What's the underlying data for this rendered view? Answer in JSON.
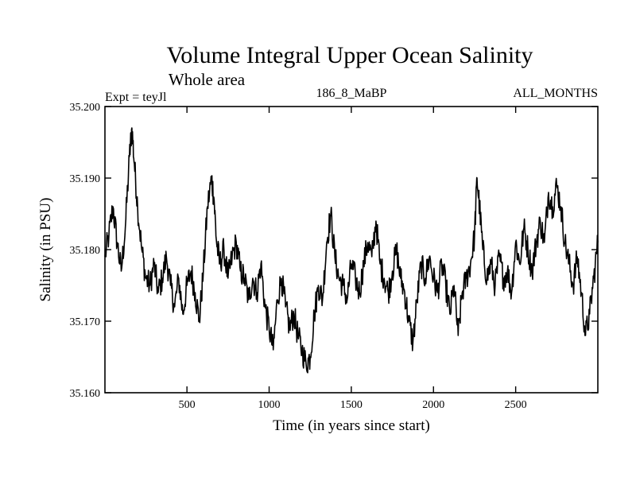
{
  "chart_data": {
    "type": "line",
    "title": "Volume Integral Upper Ocean Salinity",
    "subtitle": "Whole area",
    "experiment": "Expt = teyJl",
    "run_id": "186_8_MaBP",
    "period": "ALL_MONTHS",
    "xlabel": "Time (in years since start)",
    "ylabel": "Salinity (in PSU)",
    "xlim": [
      1,
      3000
    ],
    "ylim": [
      35.16,
      35.2
    ],
    "x_ticks": [
      500,
      1000,
      1500,
      2000,
      2500
    ],
    "x_tick_labels": [
      "500",
      "1000",
      "1500",
      "2000",
      "2500"
    ],
    "y_ticks": [
      35.16,
      35.17,
      35.18,
      35.19,
      35.2
    ],
    "y_tick_labels": [
      "35.160",
      "35.170",
      "35.180",
      "35.190",
      "35.200"
    ],
    "series": [
      {
        "name": "Salinity",
        "x": [
          1,
          25,
          50,
          75,
          100,
          125,
          150,
          165,
          180,
          200,
          225,
          250,
          275,
          300,
          325,
          350,
          375,
          400,
          425,
          450,
          475,
          500,
          525,
          550,
          575,
          600,
          625,
          650,
          665,
          680,
          700,
          725,
          750,
          775,
          800,
          825,
          850,
          875,
          900,
          925,
          950,
          975,
          1000,
          1025,
          1050,
          1075,
          1100,
          1125,
          1150,
          1175,
          1200,
          1225,
          1250,
          1275,
          1300,
          1325,
          1350,
          1375,
          1400,
          1425,
          1450,
          1475,
          1500,
          1525,
          1550,
          1575,
          1600,
          1625,
          1650,
          1675,
          1700,
          1725,
          1750,
          1775,
          1800,
          1825,
          1850,
          1875,
          1900,
          1925,
          1950,
          1975,
          2000,
          2025,
          2050,
          2075,
          2100,
          2125,
          2150,
          2175,
          2200,
          2225,
          2250,
          2265,
          2280,
          2300,
          2325,
          2350,
          2375,
          2400,
          2425,
          2450,
          2475,
          2500,
          2525,
          2550,
          2575,
          2600,
          2625,
          2650,
          2675,
          2700,
          2725,
          2750,
          2775,
          2800,
          2825,
          2850,
          2875,
          2900,
          2925,
          2950,
          2975,
          3000
        ],
        "values": [
          35.179,
          35.182,
          35.186,
          35.181,
          35.177,
          35.183,
          35.193,
          35.197,
          35.192,
          35.186,
          35.18,
          35.176,
          35.175,
          35.178,
          35.174,
          35.176,
          35.179,
          35.175,
          35.172,
          35.176,
          35.171,
          35.175,
          35.177,
          35.174,
          35.17,
          35.177,
          35.186,
          35.19,
          35.187,
          35.181,
          35.178,
          35.18,
          35.176,
          35.179,
          35.181,
          35.177,
          35.176,
          35.173,
          35.176,
          35.174,
          35.178,
          35.172,
          35.169,
          35.166,
          35.173,
          35.176,
          35.172,
          35.169,
          35.171,
          35.168,
          35.166,
          35.164,
          35.165,
          35.171,
          35.175,
          35.173,
          35.181,
          35.185,
          35.179,
          35.176,
          35.175,
          35.173,
          35.178,
          35.176,
          35.174,
          35.178,
          35.181,
          35.179,
          35.184,
          35.178,
          35.176,
          35.174,
          35.177,
          35.18,
          35.176,
          35.174,
          35.17,
          35.167,
          35.173,
          35.178,
          35.176,
          35.179,
          35.176,
          35.174,
          35.178,
          35.175,
          35.171,
          35.175,
          35.168,
          35.174,
          35.176,
          35.178,
          35.182,
          35.19,
          35.186,
          35.18,
          35.176,
          35.178,
          35.175,
          35.179,
          35.176,
          35.177,
          35.174,
          35.181,
          35.178,
          35.183,
          35.18,
          35.177,
          35.181,
          35.184,
          35.181,
          35.188,
          35.186,
          35.189,
          35.186,
          35.181,
          35.178,
          35.175,
          35.179,
          35.174,
          35.168,
          35.171,
          35.176,
          35.181
        ]
      }
    ]
  }
}
